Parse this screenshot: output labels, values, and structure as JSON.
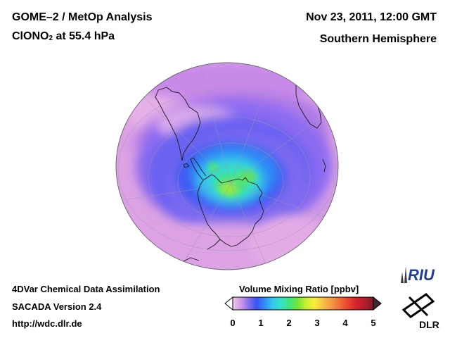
{
  "header": {
    "title_line1": "GOME–2 / MetOp Analysis",
    "species_prefix": "ClONO",
    "species_subscript": "2",
    "species_suffix": " at 55.4 hPa",
    "datetime": "Nov 23, 2011, 12:00 GMT",
    "region": "Southern Hemisphere"
  },
  "footer": {
    "line1": "4DVar Chemical Data Assimilation",
    "line2": "SACADA Version 2.4",
    "line3": "http://wdc.dlr.de"
  },
  "colorbar": {
    "title": "Volume Mixing Ratio [ppbv]",
    "min": 0,
    "max": 5,
    "ticks": [
      "0",
      "1",
      "2",
      "3",
      "4",
      "5"
    ],
    "under_color": "#ffffff",
    "over_color": "#3a2a2a",
    "stops": [
      {
        "v": 0.0,
        "c": "#f3c8ec"
      },
      {
        "v": 0.35,
        "c": "#c58ee6"
      },
      {
        "v": 0.6,
        "c": "#7a6cf0"
      },
      {
        "v": 0.85,
        "c": "#3a55f2"
      },
      {
        "v": 1.1,
        "c": "#2f86f5"
      },
      {
        "v": 1.4,
        "c": "#32c6ee"
      },
      {
        "v": 1.7,
        "c": "#33e3c8"
      },
      {
        "v": 2.0,
        "c": "#3fe57f"
      },
      {
        "v": 2.3,
        "c": "#6fe636"
      },
      {
        "v": 2.6,
        "c": "#c9ee32"
      },
      {
        "v": 2.9,
        "c": "#f7ee3a"
      },
      {
        "v": 3.2,
        "c": "#f7c248"
      },
      {
        "v": 3.6,
        "c": "#f28c42"
      },
      {
        "v": 4.0,
        "c": "#ec5030"
      },
      {
        "v": 4.4,
        "c": "#d3232a"
      },
      {
        "v": 4.8,
        "c": "#a51d2a"
      },
      {
        "v": 5.0,
        "c": "#7a1b24"
      }
    ]
  },
  "logos": {
    "riu_text": "RIU",
    "dlr_text": "DLR"
  }
}
